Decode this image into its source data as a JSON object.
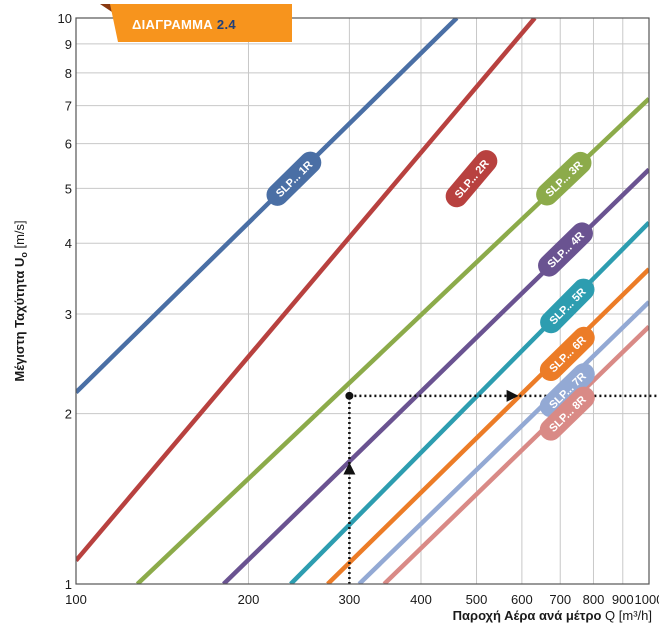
{
  "badge": {
    "prefix": "ΔΙΑΓΡΑΜΜΑ",
    "number": "2.4",
    "color": "#f7941d"
  },
  "chart_data": {
    "type": "line",
    "x_scale": "log",
    "y_scale": "log",
    "xlim": [
      100,
      1000
    ],
    "ylim": [
      1,
      10
    ],
    "x_ticks": [
      100,
      200,
      300,
      400,
      500,
      600,
      700,
      800,
      900,
      1000
    ],
    "x_tick_labels": [
      "100",
      "200",
      "300",
      "400",
      "500",
      "600",
      "700",
      "800",
      "900",
      "1000"
    ],
    "y_ticks": [
      1,
      2,
      3,
      4,
      5,
      6,
      7,
      8,
      9,
      10
    ],
    "y_tick_labels": [
      "1",
      "2",
      "3",
      "4",
      "5",
      "6",
      "7",
      "8",
      "9",
      "10"
    ],
    "grid": true,
    "xlabel": {
      "main": "Παροχή Αέρα ανά μέτρο",
      "unit": " Q [m³/h]"
    },
    "ylabel": {
      "main": "Μέγιστη Ταχύτητα U",
      "sub": "o",
      "unit": " [m/s]"
    },
    "series": [
      {
        "name": "SLP... 1R",
        "color": "#4a6fa5",
        "points": [
          [
            100,
            2.18
          ],
          [
            462,
            10
          ]
        ],
        "label_at": [
          240,
          5.2
        ]
      },
      {
        "name": "SLP... 2R",
        "color": "#b8413f",
        "points": [
          [
            100,
            1.1
          ],
          [
            632,
            10
          ]
        ],
        "label_at": [
          490,
          5.2
        ]
      },
      {
        "name": "SLP... 3R",
        "color": "#8cab4a",
        "points": [
          [
            128,
            1
          ],
          [
            1000,
            7.2
          ]
        ],
        "label_at": [
          710,
          5.2
        ]
      },
      {
        "name": "SLP... 4R",
        "color": "#6a5391",
        "points": [
          [
            181,
            1
          ],
          [
            1000,
            5.4
          ]
        ],
        "label_at": [
          715,
          3.9
        ]
      },
      {
        "name": "SLP... 5R",
        "color": "#2d9db0",
        "points": [
          [
            237,
            1
          ],
          [
            1000,
            4.35
          ]
        ],
        "label_at": [
          720,
          3.1
        ]
      },
      {
        "name": "SLP... 6R",
        "color": "#ec7c27",
        "points": [
          [
            275,
            1
          ],
          [
            1000,
            3.6
          ]
        ],
        "label_at": [
          720,
          2.55
        ]
      },
      {
        "name": "SLP... 7R",
        "color": "#93a9d4",
        "points": [
          [
            312,
            1
          ],
          [
            1000,
            3.15
          ]
        ],
        "label_at": [
          720,
          2.2
        ]
      },
      {
        "name": "SLP... 8R",
        "color": "#d98a86",
        "points": [
          [
            345,
            1
          ],
          [
            1000,
            2.85
          ]
        ],
        "label_at": [
          720,
          2.0
        ]
      }
    ],
    "annotation": {
      "point": [
        300,
        2.15
      ],
      "arrow_up_at": [
        300,
        1.6
      ],
      "arrow_right_at": [
        578,
        2.15
      ]
    }
  }
}
